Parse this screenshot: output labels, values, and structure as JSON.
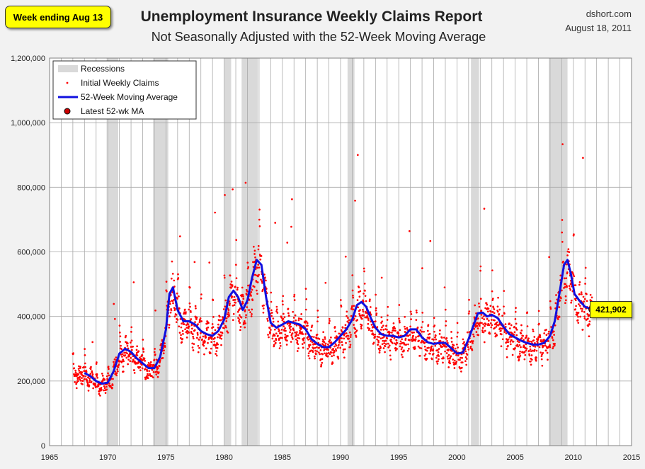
{
  "header": {
    "week_badge": "Week ending Aug 13",
    "title": "Unemployment Insurance Weekly Claims Report",
    "subtitle": "Not Seasonally Adjusted with the 52-Week Moving Average",
    "source": "dshort.com",
    "date": "August 18, 2011"
  },
  "latest_label": "421,902",
  "colors": {
    "claims": "#ff0000",
    "moving_average": "#1010e0",
    "recession": "#d9d9d9",
    "latest_marker": "#cc0000",
    "badge": "#ffff00"
  },
  "chart_data": {
    "type": "scatter",
    "title": "Unemployment Insurance Weekly Claims Report",
    "subtitle": "Not Seasonally Adjusted with the 52-Week Moving Average",
    "xlim": [
      1965,
      2015
    ],
    "ylim": [
      0,
      1200000
    ],
    "x_ticks": [
      1965,
      1970,
      1975,
      1980,
      1985,
      1990,
      1995,
      2000,
      2005,
      2010,
      2015
    ],
    "y_ticks": [
      0,
      200000,
      400000,
      600000,
      800000,
      1000000,
      1200000
    ],
    "y_tick_labels": [
      "0",
      "200,000",
      "400,000",
      "600,000",
      "800,000",
      "1,000,000",
      "1,200,000"
    ],
    "grid": "vertical lines every year, horizontal at y ticks",
    "legend_position": "top-left",
    "legend": [
      "Recessions",
      "Initial Weekly Claims",
      "52-Week Moving Average",
      "Latest 52-wk MA"
    ],
    "recessions": [
      [
        1969.9,
        1970.9
      ],
      [
        1973.9,
        1975.2
      ],
      [
        1980.0,
        1980.6
      ],
      [
        1981.5,
        1982.9
      ],
      [
        1990.6,
        1991.2
      ],
      [
        2001.2,
        2001.9
      ],
      [
        2007.9,
        2009.5
      ]
    ],
    "series": [
      {
        "name": "52-Week Moving Average",
        "x": [
          1968.0,
          1968.5,
          1969.0,
          1969.5,
          1970.0,
          1970.5,
          1971.0,
          1971.5,
          1972.0,
          1972.5,
          1973.0,
          1973.5,
          1974.0,
          1974.5,
          1975.0,
          1975.3,
          1975.6,
          1976.0,
          1976.5,
          1977.0,
          1977.5,
          1978.0,
          1978.5,
          1979.0,
          1979.5,
          1980.0,
          1980.4,
          1980.8,
          1981.2,
          1981.6,
          1982.0,
          1982.4,
          1982.8,
          1983.2,
          1983.6,
          1984.0,
          1984.5,
          1985.0,
          1985.5,
          1986.0,
          1986.5,
          1987.0,
          1987.5,
          1988.0,
          1988.5,
          1989.0,
          1989.5,
          1990.0,
          1990.5,
          1991.0,
          1991.4,
          1991.8,
          1992.2,
          1992.6,
          1993.0,
          1993.5,
          1994.0,
          1994.5,
          1995.0,
          1995.5,
          1996.0,
          1996.5,
          1997.0,
          1997.5,
          1998.0,
          1998.5,
          1999.0,
          1999.5,
          2000.0,
          2000.5,
          2001.0,
          2001.4,
          2001.8,
          2002.2,
          2002.6,
          2003.0,
          2003.5,
          2004.0,
          2004.5,
          2005.0,
          2005.5,
          2006.0,
          2006.5,
          2007.0,
          2007.5,
          2008.0,
          2008.4,
          2008.8,
          2009.2,
          2009.5,
          2009.8,
          2010.1,
          2010.5,
          2011.0,
          2011.6
        ],
        "y": [
          225000,
          215000,
          200000,
          192000,
          195000,
          230000,
          285000,
          300000,
          290000,
          270000,
          255000,
          240000,
          240000,
          275000,
          360000,
          470000,
          490000,
          420000,
          385000,
          385000,
          375000,
          355000,
          345000,
          340000,
          355000,
          390000,
          460000,
          480000,
          460000,
          420000,
          450000,
          520000,
          575000,
          560000,
          460000,
          380000,
          365000,
          375000,
          385000,
          380000,
          375000,
          360000,
          330000,
          315000,
          305000,
          305000,
          320000,
          340000,
          360000,
          390000,
          435000,
          445000,
          430000,
          395000,
          365000,
          345000,
          340000,
          340000,
          335000,
          340000,
          360000,
          360000,
          335000,
          320000,
          315000,
          318000,
          318000,
          302000,
          285000,
          288000,
          330000,
          370000,
          410000,
          412000,
          400000,
          405000,
          395000,
          368000,
          345000,
          335000,
          325000,
          318000,
          313000,
          313000,
          318000,
          340000,
          385000,
          470000,
          560000,
          575000,
          530000,
          470000,
          450000,
          430000,
          421902
        ]
      },
      {
        "name": "Latest 52-wk MA",
        "x": [
          2011.6
        ],
        "y": [
          421902
        ]
      }
    ]
  }
}
